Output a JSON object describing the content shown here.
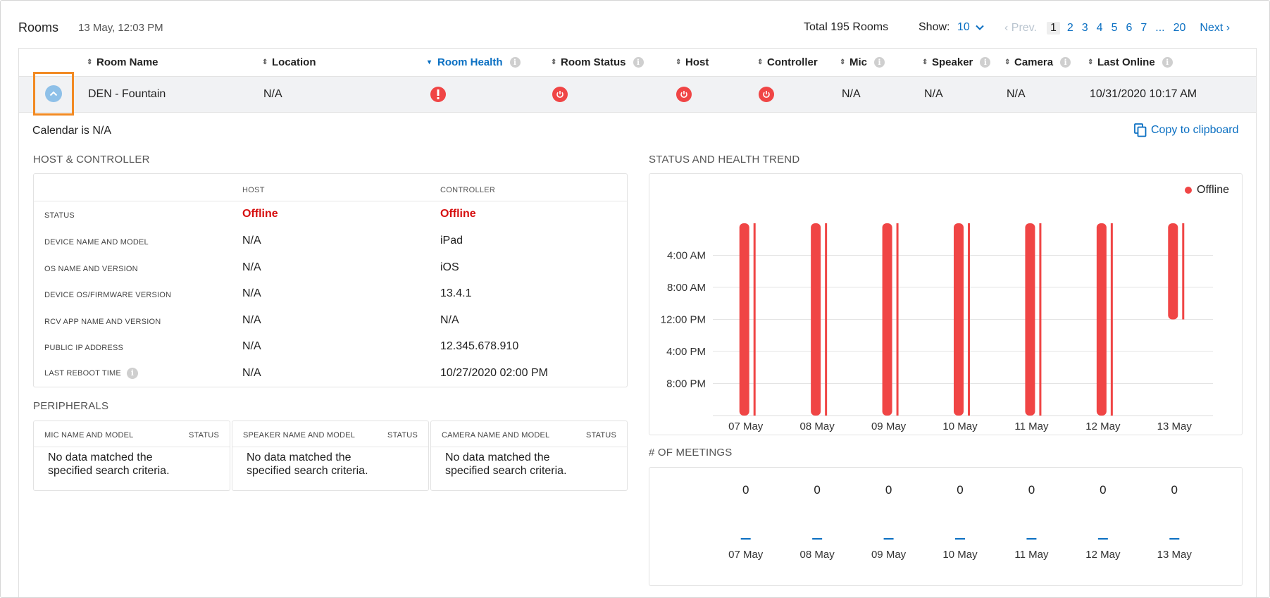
{
  "header": {
    "title": "Rooms",
    "date": "13 May, 12:03 PM",
    "total": "Total 195 Rooms",
    "show_label": "Show:",
    "show_value": "10",
    "prev_label": "Prev.",
    "next_label": "Next",
    "pages": [
      "1",
      "2",
      "3",
      "4",
      "5",
      "6",
      "7",
      "...",
      "20"
    ],
    "current_page": "1"
  },
  "columns": [
    {
      "label": "Room Name",
      "info": false
    },
    {
      "label": "Location",
      "info": false
    },
    {
      "label": "Room Health",
      "info": true,
      "active": true
    },
    {
      "label": "Room Status",
      "info": true
    },
    {
      "label": "Host",
      "info": false
    },
    {
      "label": "Controller",
      "info": false
    },
    {
      "label": "Mic",
      "info": true
    },
    {
      "label": "Speaker",
      "info": true
    },
    {
      "label": "Camera",
      "info": true
    },
    {
      "label": "Last Online",
      "info": true
    }
  ],
  "row": {
    "room_name": "DEN - Fountain",
    "location": "N/A",
    "room_health": "error-icon",
    "room_status": "power-icon",
    "host": "power-icon",
    "controller": "power-icon",
    "mic": "N/A",
    "speaker": "N/A",
    "camera": "N/A",
    "last_online": "10/31/2020 10:17 AM"
  },
  "detail": {
    "calendar": "Calendar is N/A",
    "copy_label": "Copy to clipboard",
    "host_controller": {
      "title": "HOST & CONTROLLER",
      "col_host": "HOST",
      "col_controller": "CONTROLLER",
      "rows": [
        {
          "label": "STATUS",
          "host": "Offline",
          "controller": "Offline",
          "offline": true
        },
        {
          "label": "DEVICE NAME AND MODEL",
          "host": "N/A",
          "controller": "iPad"
        },
        {
          "label": "OS NAME AND VERSION",
          "host": "N/A",
          "controller": "iOS"
        },
        {
          "label": "DEVICE OS/FIRMWARE VERSION",
          "host": "N/A",
          "controller": "13.4.1"
        },
        {
          "label": "RCV APP NAME AND VERSION",
          "host": "N/A",
          "controller": "N/A"
        },
        {
          "label": "PUBLIC IP ADDRESS",
          "host": "N/A",
          "controller": "12.345.678.910"
        },
        {
          "label": "LAST REBOOT TIME",
          "host": "N/A",
          "controller": "10/27/2020 02:00 PM",
          "info": true
        }
      ]
    },
    "peripherals": {
      "title": "PERIPHERALS",
      "status_label": "STATUS",
      "empty_text": "No data matched the specified search criteria.",
      "cards": [
        {
          "name_label": "MIC NAME AND MODEL"
        },
        {
          "name_label": "SPEAKER NAME AND MODEL"
        },
        {
          "name_label": "CAMERA NAME AND MODEL"
        }
      ]
    },
    "trend_title": "STATUS AND HEALTH TREND",
    "meetings_title": "# OF MEETINGS",
    "colors": {
      "offline": "#f04545",
      "accent": "#0a6fc2",
      "highlight": "#f28a23"
    }
  },
  "chart_data": [
    {
      "type": "bar",
      "title": "STATUS AND HEALTH TREND",
      "categories": [
        "07 May",
        "08 May",
        "09 May",
        "10 May",
        "11 May",
        "12 May",
        "13 May"
      ],
      "y_ticks": [
        "4:00 AM",
        "8:00 AM",
        "12:00 PM",
        "4:00 PM",
        "8:00 PM"
      ],
      "y_range_hours": [
        0,
        24
      ],
      "series": [
        {
          "name": "Offline",
          "intervals": [
            {
              "day": "07 May",
              "start_hour": 0,
              "end_hour": 24
            },
            {
              "day": "08 May",
              "start_hour": 0,
              "end_hour": 24
            },
            {
              "day": "09 May",
              "start_hour": 0,
              "end_hour": 24
            },
            {
              "day": "10 May",
              "start_hour": 0,
              "end_hour": 24
            },
            {
              "day": "11 May",
              "start_hour": 0,
              "end_hour": 24
            },
            {
              "day": "12 May",
              "start_hour": 0,
              "end_hour": 24
            },
            {
              "day": "13 May",
              "start_hour": 0,
              "end_hour": 12
            }
          ]
        }
      ],
      "legend": "top-right"
    },
    {
      "type": "bar",
      "title": "# OF MEETINGS",
      "categories": [
        "07 May",
        "08 May",
        "09 May",
        "10 May",
        "11 May",
        "12 May",
        "13 May"
      ],
      "values": [
        0,
        0,
        0,
        0,
        0,
        0,
        0
      ]
    }
  ]
}
